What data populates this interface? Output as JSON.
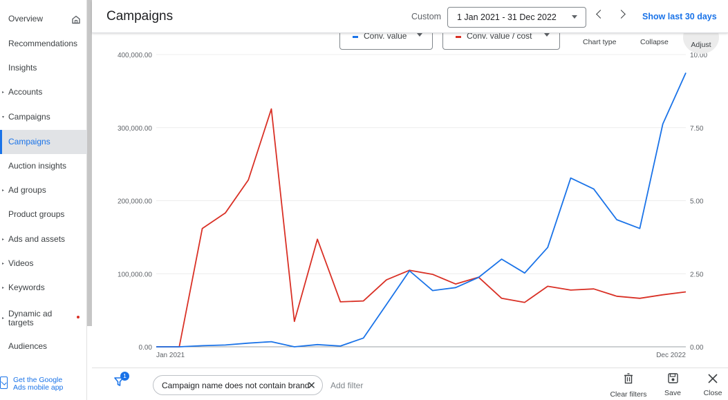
{
  "sidebar": {
    "items": [
      {
        "label": "Overview",
        "caret": ""
      },
      {
        "label": "Recommendations",
        "caret": ""
      },
      {
        "label": "Insights",
        "caret": ""
      },
      {
        "label": "Accounts",
        "caret": "▸"
      },
      {
        "label": "Campaigns",
        "caret": "▾"
      },
      {
        "label": "Campaigns",
        "caret": ""
      },
      {
        "label": "Auction insights",
        "caret": ""
      },
      {
        "label": "Ad groups",
        "caret": "▸"
      },
      {
        "label": "Product groups",
        "caret": ""
      },
      {
        "label": "Ads and assets",
        "caret": "▸"
      },
      {
        "label": "Videos",
        "caret": "▸"
      },
      {
        "label": "Keywords",
        "caret": "▸"
      },
      {
        "label": "Dynamic ad targets",
        "caret": "▸"
      },
      {
        "label": "Audiences",
        "caret": ""
      }
    ],
    "mobile_app": "Get the Google Ads mobile app"
  },
  "header": {
    "title": "Campaigns",
    "custom_label": "Custom",
    "date_range": "1 Jan 2021 - 31 Dec 2022",
    "show_last": "Show last 30 days"
  },
  "toolbar": {
    "metric_1": "Conv. value",
    "metric_2": "Conv. value / cost",
    "chart_type": "Chart type",
    "collapse": "Collapse",
    "adjust": "Adjust"
  },
  "colors": {
    "conv_value": "#1a73e8",
    "conv_value_cost": "#d93025"
  },
  "chart_data": {
    "type": "line",
    "x_labels": [
      "Jan 2021",
      "Dec 2022"
    ],
    "left_axis": {
      "ticks": [
        "0.00",
        "100,000.00",
        "200,000.00",
        "300,000.00",
        "400,000.00"
      ],
      "ylim": [
        0,
        400000
      ]
    },
    "right_axis": {
      "ticks": [
        "0.00",
        "2.50",
        "5.00",
        "7.50",
        "10.00"
      ],
      "ylim": [
        0,
        10
      ]
    },
    "grid": true,
    "series": [
      {
        "name": "Conv. value",
        "axis": "left",
        "values": [
          0,
          0,
          1500,
          2500,
          5000,
          7000,
          0,
          3000,
          1000,
          12000,
          58000,
          104000,
          77000,
          81000,
          95000,
          120000,
          101000,
          136000,
          231000,
          216000,
          174000,
          162000,
          305000,
          375000
        ]
      },
      {
        "name": "Conv. value / cost",
        "axis": "right",
        "values": [
          0,
          0,
          4.05,
          4.58,
          5.71,
          8.14,
          0.87,
          3.68,
          1.54,
          1.57,
          2.29,
          2.62,
          2.48,
          2.15,
          2.38,
          1.66,
          1.52,
          2.07,
          1.94,
          1.98,
          1.73,
          1.66,
          1.78,
          1.88
        ]
      }
    ]
  },
  "bottom_bar": {
    "filter_count": "1",
    "filter_chip": "Campaign name does not contain brand",
    "add_filter": "Add filter",
    "clear_filters": "Clear filters",
    "save": "Save",
    "close": "Close"
  }
}
